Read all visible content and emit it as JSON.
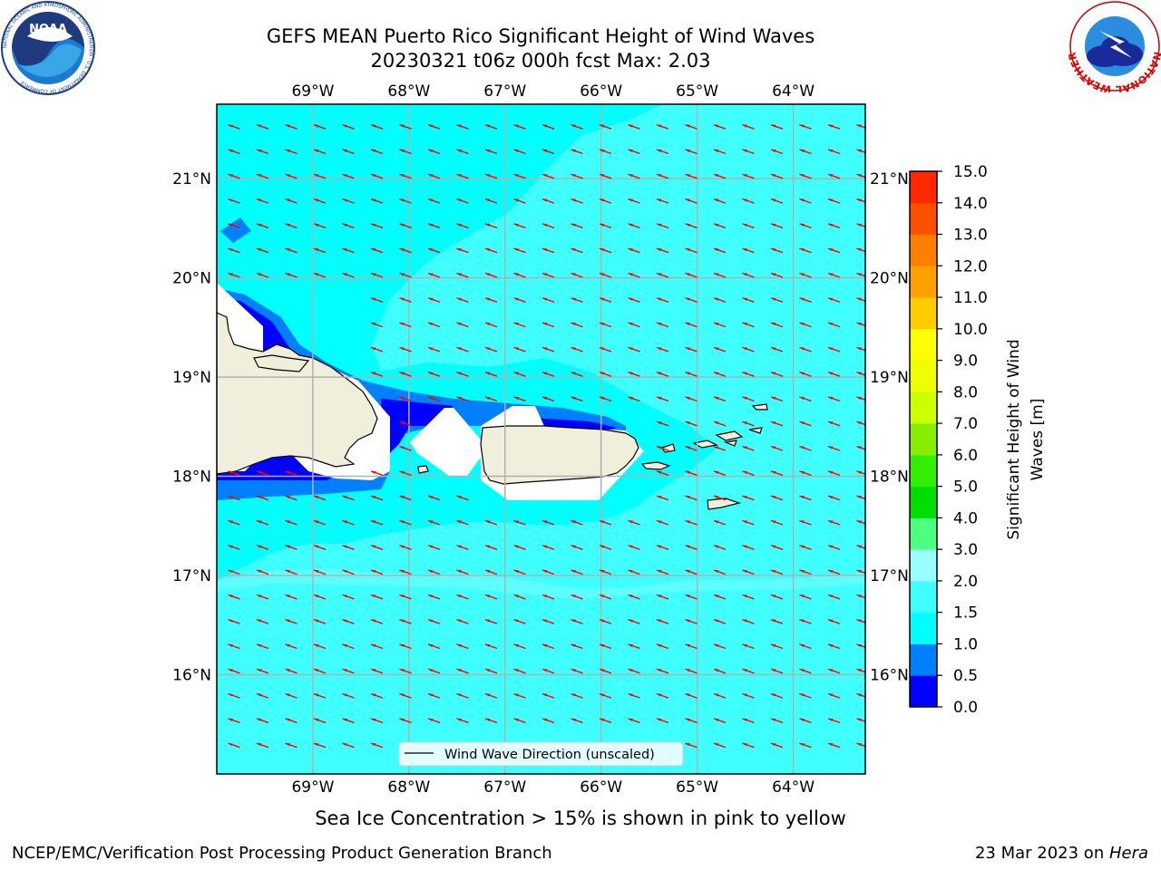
{
  "header": {
    "title_line1": "GEFS MEAN Puerto Rico Significant Height of Wind Waves",
    "title_line2": "20230321 t06z 000h fcst   Max: 2.03"
  },
  "logos": {
    "noaa": {
      "text": "NOAA",
      "ring_text": "NATIONAL OCEANIC AND ATMOSPHERIC ADMINISTRATION · U.S. DEPARTMENT OF COMMERCE"
    },
    "nws": {
      "ring_text": "NATIONAL WEATHER SERVICE"
    }
  },
  "map": {
    "lon_range": [
      -70,
      -63.25
    ],
    "lat_range": [
      15,
      21.75
    ],
    "lon_ticks": [
      "69°W",
      "68°W",
      "67°W",
      "66°W",
      "65°W",
      "64°W"
    ],
    "lon_tick_values": [
      -69,
      -68,
      -67,
      -66,
      -65,
      -64
    ],
    "lat_ticks": [
      "21°N",
      "20°N",
      "19°N",
      "18°N",
      "17°N",
      "16°N"
    ],
    "lat_tick_values": [
      21,
      20,
      19,
      18,
      17,
      16
    ],
    "grid": true,
    "wind_direction": "toward west (easterly trade winds)",
    "legend_label": "Wind Wave Direction (unscaled)",
    "colors": {
      "band_0_0.5": "#0000ff",
      "band_0.5_1.0": "#0080ff",
      "band_1.0_1.5": "#00ffff",
      "band_1.5_2.0": "#40ffff",
      "band_2.0_3.0": "#99ffff",
      "land": "#efefdc",
      "arrow": "#ff0000"
    }
  },
  "colorbar": {
    "label": "Significant Height of Wind Waves [m]",
    "label_line1": "Significant Height of Wind",
    "label_line2": "Waves [m]",
    "levels": [
      0.0,
      0.5,
      1.0,
      1.5,
      2.0,
      3.0,
      4.0,
      5.0,
      6.0,
      7.0,
      8.0,
      9.0,
      10.0,
      11.0,
      12.0,
      13.0,
      14.0,
      15.0
    ],
    "level_labels": [
      "0.0",
      "0.5",
      "1.0",
      "1.5",
      "2.0",
      "3.0",
      "4.0",
      "5.0",
      "6.0",
      "7.0",
      "8.0",
      "9.0",
      "10.0",
      "11.0",
      "12.0",
      "13.0",
      "14.0",
      "15.0"
    ],
    "colors": [
      "#0000ff",
      "#0080ff",
      "#00ffff",
      "#40ffff",
      "#99ffff",
      "#4dff80",
      "#00dd00",
      "#33ee00",
      "#88ee00",
      "#ccff00",
      "#eeff00",
      "#ffff00",
      "#ffcc00",
      "#ffa000",
      "#ff8000",
      "#ff5000",
      "#ff2800"
    ]
  },
  "notes": {
    "sea_ice": "Sea Ice Concentration > 15% is shown in pink to yellow"
  },
  "footer": {
    "left": "NCEP/EMC/Verification Post Processing Product Generation Branch",
    "right_prefix": "23 Mar 2023 on ",
    "right_machine": "Hera"
  }
}
